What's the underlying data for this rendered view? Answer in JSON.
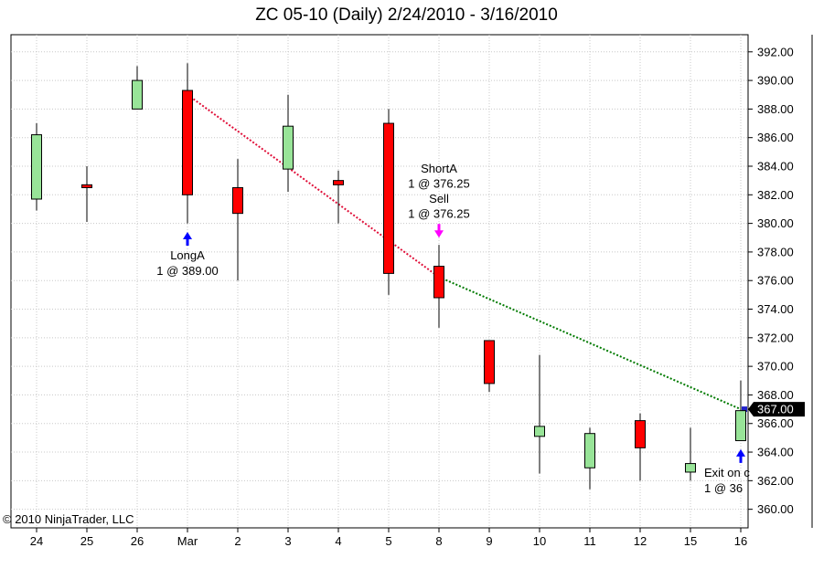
{
  "chart_data": {
    "type": "candlestick",
    "title": "ZC 05-10 (Daily)  2/24/2010 - 3/16/2010",
    "copyright": "© 2010 NinjaTrader, LLC",
    "ylim": [
      358.7,
      393.2
    ],
    "yticks": [
      360,
      362,
      364,
      366,
      368,
      370,
      372,
      374,
      376,
      378,
      380,
      382,
      384,
      386,
      388,
      390,
      392
    ],
    "ytick_labels": [
      "360.00",
      "362.00",
      "364.00",
      "366.00",
      "368.00",
      "370.00",
      "372.00",
      "374.00",
      "376.00",
      "378.00",
      "380.00",
      "382.00",
      "384.00",
      "386.00",
      "388.00",
      "390.00",
      "392.00"
    ],
    "grid": "horizontal and vertical dotted",
    "candles": [
      {
        "label": "24",
        "open": 381.7,
        "high": 387.0,
        "low": 380.9,
        "close": 386.2
      },
      {
        "label": "25",
        "open": 382.7,
        "high": 384.0,
        "low": 380.1,
        "close": 382.5
      },
      {
        "label": "26",
        "open": 388.0,
        "high": 391.0,
        "low": 388.0,
        "close": 390.0
      },
      {
        "label": "Mar",
        "open": 389.3,
        "high": 391.2,
        "low": 380.0,
        "close": 382.0
      },
      {
        "label": "2",
        "open": 382.5,
        "high": 384.5,
        "low": 376.0,
        "close": 380.7
      },
      {
        "label": "3",
        "open": 383.8,
        "high": 389.0,
        "low": 382.2,
        "close": 386.8
      },
      {
        "label": "4",
        "open": 383.0,
        "high": 383.7,
        "low": 380.0,
        "close": 382.7
      },
      {
        "label": "5",
        "open": 387.0,
        "high": 388.0,
        "low": 375.0,
        "close": 376.5
      },
      {
        "label": "8",
        "open": 377.0,
        "high": 378.5,
        "low": 372.7,
        "close": 374.8
      },
      {
        "label": "9",
        "open": 371.8,
        "high": 371.8,
        "low": 368.2,
        "close": 368.8
      },
      {
        "label": "10",
        "open": 365.1,
        "high": 370.8,
        "low": 362.5,
        "close": 365.8
      },
      {
        "label": "11",
        "open": 362.9,
        "high": 365.7,
        "low": 361.4,
        "close": 365.3
      },
      {
        "label": "12",
        "open": 366.2,
        "high": 366.7,
        "low": 362.0,
        "close": 364.3
      },
      {
        "label": "15",
        "open": 362.6,
        "high": 365.7,
        "low": 362.0,
        "close": 363.2
      },
      {
        "label": "16",
        "open": 364.8,
        "high": 369.0,
        "low": 364.8,
        "close": 366.9
      }
    ],
    "colors": {
      "up": "#98e498",
      "down": "#ff0000",
      "wick": "#000000",
      "long_trade": "#e0103a",
      "short_trade": "#007a00",
      "arrow_long": "#0000ff",
      "arrow_short": "#ff00ff",
      "price_box": "#000000"
    },
    "trades": [
      {
        "from_index": 3,
        "from_price": 389.0,
        "to_index": 8,
        "to_price": 376.25,
        "style": "long"
      },
      {
        "from_index": 8,
        "from_price": 376.25,
        "to_index": 14,
        "to_price": 367.0,
        "style": "short"
      }
    ],
    "annotations": [
      {
        "index": 3,
        "price": 379.4,
        "direction": "up",
        "lines": [
          "LongA",
          "1 @ 389.00"
        ]
      },
      {
        "index": 8,
        "price": 379.0,
        "direction": "down",
        "lines": [
          "ShortA",
          "1 @ 376.25",
          "Sell",
          "1 @ 376.25"
        ]
      },
      {
        "index": 14,
        "price": 364.2,
        "direction": "up",
        "lines": [
          "Exit on c",
          "1 @ 36"
        ]
      }
    ],
    "last_price": 367.0,
    "last_price_label": "367.00"
  }
}
